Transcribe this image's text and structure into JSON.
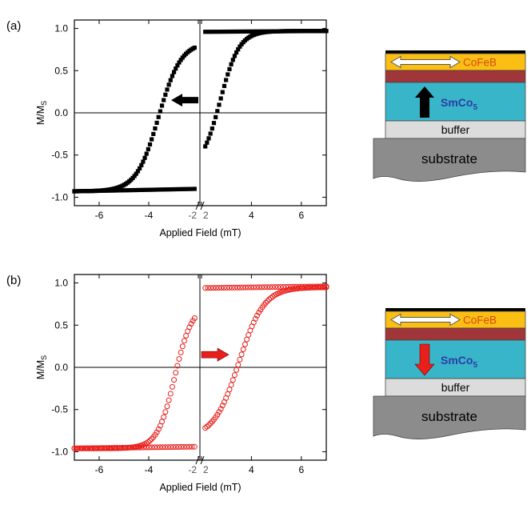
{
  "panels": [
    {
      "label": "(a)",
      "xlabel": "Applied Field (mT)",
      "ylabel_main": "M/M",
      "ylabel_sub": "S",
      "color": "#000000",
      "marker": "filled-square",
      "arrow_direction": "left",
      "arrow_color": "#000000",
      "layers": {
        "top": "CoFeB",
        "pinned": "SmCo",
        "pinned_sub": "5",
        "buffer": "buffer",
        "substrate": "substrate"
      },
      "pinned_arrow": "up",
      "pinned_arrow_color": "#000000"
    },
    {
      "label": "(b)",
      "xlabel": "Applied Field (mT)",
      "ylabel_main": "M/M",
      "ylabel_sub": "S",
      "color": "#e8201c",
      "marker": "open-circle",
      "arrow_direction": "right",
      "arrow_color": "#e8201c",
      "layers": {
        "top": "CoFeB",
        "pinned": "SmCo",
        "pinned_sub": "5",
        "buffer": "buffer",
        "substrate": "substrate"
      },
      "pinned_arrow": "down",
      "pinned_arrow_color": "#e8201c"
    }
  ],
  "chart_data": [
    {
      "type": "scatter",
      "panel": "(a)",
      "xlabel": "Applied Field (mT)",
      "ylabel": "M/MS",
      "x_axis_break": true,
      "left_segment": {
        "xlim": [
          -7,
          -2
        ],
        "xticks": [
          -6,
          -4,
          -2
        ]
      },
      "right_segment": {
        "xlim": [
          2,
          7
        ],
        "xticks": [
          2,
          4,
          6
        ]
      },
      "ylim": [
        -1.1,
        1.1
      ],
      "yticks": [
        -1.0,
        -0.5,
        0.0,
        0.5,
        1.0
      ],
      "yticklabels": [
        "-1.0",
        "-0.5",
        "0.0",
        "0.5",
        "1.0"
      ],
      "left_loop": {
        "center": -3.6,
        "width": 0.45,
        "y_low": -0.93,
        "y_high": 0.84,
        "flat_branch": -0.93,
        "flat_branch_tilt": 0.03
      },
      "right_loop": {
        "center": 2.75,
        "width": 0.38,
        "y_low": -0.68,
        "y_high": 0.97,
        "flat_branch": 0.96,
        "flat_branch_tilt": 0.01
      },
      "zero_line": true
    },
    {
      "type": "scatter",
      "panel": "(b)",
      "xlabel": "Applied Field (mT)",
      "ylabel": "M/MS",
      "x_axis_break": true,
      "left_segment": {
        "xlim": [
          -7,
          -2
        ],
        "xticks": [
          -6,
          -4,
          -2
        ]
      },
      "right_segment": {
        "xlim": [
          2,
          7
        ],
        "xticks": [
          2,
          4,
          6
        ]
      },
      "ylim": [
        -1.1,
        1.1
      ],
      "yticks": [
        -1.0,
        -0.5,
        0.0,
        0.5,
        1.0
      ],
      "yticklabels": [
        "-1.0",
        "-0.5",
        "0.0",
        "0.5",
        "1.0"
      ],
      "left_loop": {
        "center": -2.95,
        "width": 0.35,
        "y_low": -0.96,
        "y_high": 0.74,
        "flat_branch": -0.96,
        "flat_branch_tilt": 0.02
      },
      "right_loop": {
        "center": 3.5,
        "width": 0.5,
        "y_low": -0.83,
        "y_high": 0.95,
        "flat_branch": 0.94,
        "flat_branch_tilt": 0.02
      },
      "zero_line": true
    }
  ]
}
